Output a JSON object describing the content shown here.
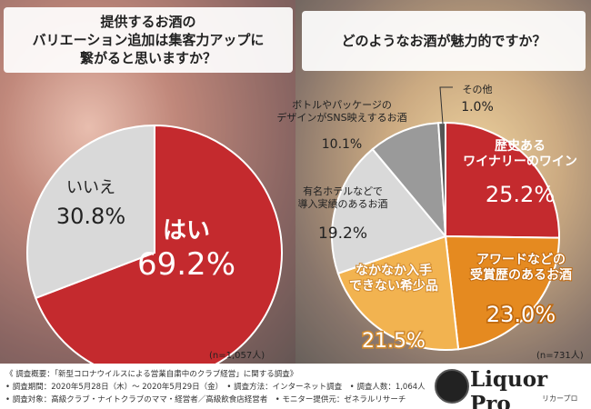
{
  "q1": {
    "lines": [
      "提供するお酒の",
      "バリエーション追加は集客力アップに",
      "繋がると思いますか？"
    ]
  },
  "q2": {
    "text": "どのようなお酒が魅力的ですか？"
  },
  "chart_data": [
    {
      "type": "pie",
      "categories": [
        "はい",
        "いいえ"
      ],
      "values": [
        69.2,
        30.8
      ],
      "value_labels": [
        "69.2%",
        "30.8%"
      ],
      "colors": [
        "#c42a2e",
        "#d9d9d9"
      ],
      "n_label": "(n=1,057人)"
    },
    {
      "type": "pie",
      "categories": [
        "歴史あるワイナリーのワイン",
        "アワードなどの受賞歴のあるお酒",
        "なかなか入手できない希少品",
        "有名ホテルなどで導入実績のあるお酒",
        "ボトルやパッケージのデザインがSNS映えするお酒",
        "その他"
      ],
      "label_lines": [
        [
          "歴史ある",
          "ワイナリーのワイン"
        ],
        [
          "アワードなどの",
          "受賞歴のあるお酒"
        ],
        [
          "なかなか入手",
          "できない希少品"
        ],
        [
          "有名ホテルなどで",
          "導入実績のあるお酒"
        ],
        [
          "ボトルやパッケージの",
          "デザインがSNS映えするお酒"
        ],
        [
          "その他"
        ]
      ],
      "values": [
        25.2,
        23.0,
        21.5,
        19.2,
        10.1,
        1.0
      ],
      "value_labels": [
        "25.2%",
        "23.0%",
        "21.5%",
        "19.2%",
        "10.1%",
        "1.0%"
      ],
      "colors": [
        "#c42a2e",
        "#e58a20",
        "#f2b350",
        "#d9d9d9",
        "#9a9a9a",
        "#555555"
      ],
      "n_label": "(n=731人)"
    }
  ],
  "footer": {
    "lines": [
      "《 調査概要：「新型コロナウイルスによる営業自粛中のクラブ経営」に関する調査》",
      "• 調査期間：2020年5月28日（木）～ 2020年5月29日（金）　• 調査方法：インターネット調査　• 調査人数：1,064人",
      "• 調査対象：高級クラブ・ナイトクラブのママ・経営者／高級飲食店経営者　• モニター提供元：ゼネラルリサーチ"
    ],
    "logo": "Liquor Pro",
    "logo_sub": "リカープロ"
  }
}
